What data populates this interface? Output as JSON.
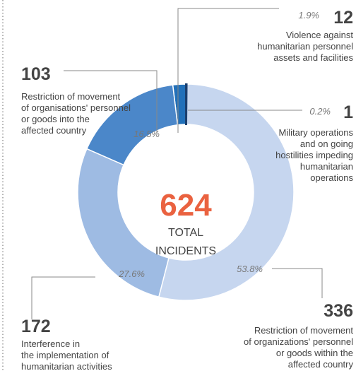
{
  "chart_data": {
    "type": "donut",
    "total": 624,
    "center_label": [
      "TOTAL",
      "INCIDENTS"
    ],
    "values": [
      1,
      336,
      172,
      103,
      12
    ],
    "percent_labels": [
      "0.2%",
      "53.8%",
      "27.6%",
      "16.5%",
      "1.9%"
    ],
    "colors": [
      "#1b3f6e",
      "#c6d6ef",
      "#9ebbe3",
      "#4b87c9",
      "#2170b9"
    ],
    "descriptions": [
      [
        "Military operations",
        "and on going",
        "hostilities impeding",
        "humanitarian",
        "operations"
      ],
      [
        "Restriction of movement",
        "of organizations' personnel",
        "or goods within the",
        "affected country"
      ],
      [
        "Interference in",
        "the implementation of",
        "humanitarian activities"
      ],
      [
        "Restriction of movement",
        "of organisations' personnel",
        "or goods into the",
        "affected country"
      ],
      [
        "Violence against",
        "humanitarian personnel",
        "assets and facilities"
      ]
    ]
  }
}
